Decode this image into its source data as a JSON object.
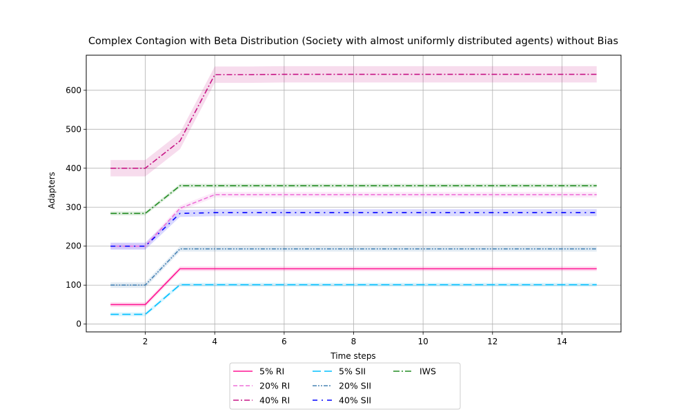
{
  "chart_data": {
    "type": "line",
    "title": "Complex Contagion with Beta Distribution (Society with almost uniformly distributed agents) without Bias",
    "xlabel": "Time steps",
    "ylabel": "Adapters",
    "xlim": [
      0.3,
      15.7
    ],
    "ylim": [
      -20,
      690
    ],
    "xticks": [
      2,
      4,
      6,
      8,
      10,
      12,
      14
    ],
    "yticks": [
      0,
      100,
      200,
      300,
      400,
      500,
      600
    ],
    "grid": true,
    "legend_position": "below-center",
    "legend_columns": 3,
    "x": [
      1,
      2,
      3,
      4,
      5,
      6,
      7,
      8,
      9,
      10,
      11,
      12,
      13,
      14,
      15
    ],
    "series": [
      {
        "name": "5% RI",
        "color": "#ff1493",
        "dash": "",
        "band": 6,
        "values": [
          50,
          50,
          142,
          142,
          142,
          142,
          142,
          142,
          142,
          142,
          142,
          142,
          142,
          142,
          142
        ]
      },
      {
        "name": "20% RI",
        "color": "#ee6fd8",
        "dash": "6,3",
        "band": 7,
        "values": [
          200,
          200,
          297,
          332,
          332,
          332,
          332,
          332,
          332,
          332,
          332,
          332,
          332,
          332,
          332
        ]
      },
      {
        "name": "40% RI",
        "color": "#c71585",
        "dash": "8,3,2,3",
        "band": 21,
        "values": [
          400,
          400,
          470,
          640,
          640,
          641,
          641,
          641,
          641,
          641,
          641,
          641,
          641,
          641,
          641
        ]
      },
      {
        "name": "5% SII",
        "color": "#00bfff",
        "dash": "12,5",
        "band": 5,
        "values": [
          25,
          25,
          101,
          101,
          101,
          101,
          101,
          101,
          101,
          101,
          101,
          101,
          101,
          101,
          101
        ]
      },
      {
        "name": "20% SII",
        "color": "#4682b4",
        "dash": "6,2,2,2,2,2",
        "band": 7,
        "values": [
          100,
          100,
          193,
          193,
          193,
          193,
          193,
          193,
          193,
          193,
          193,
          193,
          193,
          193,
          193
        ]
      },
      {
        "name": "40% SII",
        "color": "#0000ff",
        "dash": "7,6,2,6",
        "band": 9,
        "values": [
          200,
          200,
          284,
          286,
          286,
          286,
          286,
          286,
          286,
          286,
          286,
          286,
          286,
          286,
          286
        ]
      },
      {
        "name": "IWS",
        "color": "#228b22",
        "dash": "9,3,2,3",
        "band": 5,
        "values": [
          284,
          284,
          355,
          355,
          355,
          355,
          355,
          355,
          355,
          355,
          355,
          355,
          355,
          355,
          355
        ]
      }
    ]
  }
}
